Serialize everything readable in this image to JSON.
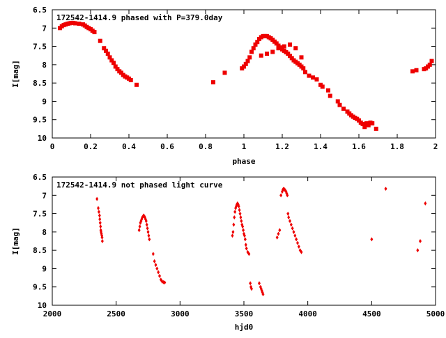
{
  "colors": {
    "points": "#ee0000",
    "axes": "#000000",
    "background": "#ffffff"
  },
  "chart_data": [
    {
      "type": "scatter",
      "title": "172542-1414.9 phased with P=379.0day",
      "xlabel": "phase",
      "ylabel": "I[mag]",
      "xlim": [
        0,
        2
      ],
      "ylim": [
        10,
        6.5
      ],
      "y_inverted": true,
      "grid": false,
      "x_ticks": [
        0,
        0.2,
        0.4,
        0.6,
        0.8,
        1,
        1.2,
        1.4,
        1.6,
        1.8,
        2
      ],
      "x_tick_labels": [
        "0",
        "0.2",
        "0.4",
        "0.6",
        "0.8",
        "1",
        "1.2",
        "1.4",
        "1.6",
        "1.8",
        "2"
      ],
      "y_ticks": [
        6.5,
        7,
        7.5,
        8,
        8.5,
        9,
        9.5,
        10
      ],
      "y_tick_labels": [
        "6.5",
        "7",
        "7.5",
        "8",
        "8.5",
        "9",
        "9.5",
        "10"
      ],
      "marker": "square",
      "series": [
        {
          "x": [
            0.04,
            0.05,
            0.06,
            0.07,
            0.08,
            0.09,
            0.1,
            0.11,
            0.12,
            0.14,
            0.16,
            0.17,
            0.18,
            0.19,
            0.2,
            0.21,
            0.22,
            0.25,
            0.27,
            0.28,
            0.29,
            0.3,
            0.31,
            0.32,
            0.33,
            0.34,
            0.35,
            0.36,
            0.37,
            0.38,
            0.39,
            0.4,
            0.41,
            0.44,
            0.84,
            0.9,
            0.99,
            1.0,
            1.01,
            1.02,
            1.03,
            1.04,
            1.05,
            1.06,
            1.07,
            1.08,
            1.09,
            1.1,
            1.11,
            1.12,
            1.13,
            1.14,
            1.15,
            1.16,
            1.17,
            1.18,
            1.19,
            1.2,
            1.21,
            1.22,
            1.23,
            1.24,
            1.25,
            1.26,
            1.27,
            1.28,
            1.29,
            1.3,
            1.31,
            1.32,
            1.34,
            1.36,
            1.38,
            1.4,
            1.41,
            1.44,
            1.45,
            1.49,
            1.5,
            1.52,
            1.54,
            1.55,
            1.56,
            1.57,
            1.58,
            1.59,
            1.6,
            1.61,
            1.62,
            1.63,
            1.64,
            1.65,
            1.66,
            1.67,
            1.69,
            1.88,
            1.9,
            1.94,
            1.95,
            1.96,
            1.97,
            1.98,
            1.09,
            1.12,
            1.15,
            1.18,
            1.21,
            1.24,
            1.27,
            1.3
          ],
          "y": [
            7.0,
            6.95,
            6.92,
            6.9,
            6.88,
            6.87,
            6.86,
            6.86,
            6.87,
            6.88,
            6.9,
            6.93,
            6.97,
            7.0,
            7.03,
            7.07,
            7.11,
            7.35,
            7.55,
            7.62,
            7.7,
            7.8,
            7.88,
            7.95,
            8.05,
            8.12,
            8.18,
            8.22,
            8.28,
            8.32,
            8.35,
            8.38,
            8.42,
            8.55,
            8.48,
            8.22,
            8.1,
            8.05,
            7.98,
            7.9,
            7.8,
            7.65,
            7.55,
            7.45,
            7.38,
            7.3,
            7.25,
            7.22,
            7.22,
            7.22,
            7.25,
            7.28,
            7.32,
            7.37,
            7.42,
            7.48,
            7.53,
            7.58,
            7.62,
            7.66,
            7.7,
            7.76,
            7.82,
            7.88,
            7.92,
            7.96,
            8.0,
            8.05,
            8.1,
            8.2,
            8.3,
            8.35,
            8.4,
            8.55,
            8.6,
            8.7,
            8.85,
            9.0,
            9.1,
            9.2,
            9.28,
            9.33,
            9.38,
            9.42,
            9.45,
            9.48,
            9.52,
            9.58,
            9.62,
            9.7,
            9.6,
            9.65,
            9.58,
            9.6,
            9.75,
            8.18,
            8.15,
            8.12,
            8.1,
            8.05,
            8.0,
            7.9,
            7.75,
            7.7,
            7.65,
            7.55,
            7.5,
            7.45,
            7.55,
            7.8
          ]
        }
      ]
    },
    {
      "type": "scatter",
      "title": "172542-1414.9 not phased light curve",
      "xlabel": "hjd0",
      "ylabel": "I[mag]",
      "xlim": [
        2000,
        5000
      ],
      "ylim": [
        10,
        6.5
      ],
      "y_inverted": true,
      "grid": false,
      "x_ticks": [
        2000,
        2500,
        3000,
        3500,
        4000,
        4500,
        5000
      ],
      "x_tick_labels": [
        "2000",
        "2500",
        "3000",
        "3500",
        "4000",
        "4500",
        "5000"
      ],
      "y_ticks": [
        6.5,
        7,
        7.5,
        8,
        8.5,
        9,
        9.5,
        10
      ],
      "y_tick_labels": [
        "6.5",
        "7",
        "7.5",
        "8",
        "8.5",
        "9",
        "9.5",
        "10"
      ],
      "marker": "diamond",
      "series": [
        {
          "x": [
            2350,
            2360,
            2365,
            2370,
            2372,
            2375,
            2378,
            2380,
            2382,
            2385,
            2388,
            2390,
            2392,
            2680,
            2685,
            2690,
            2695,
            2700,
            2705,
            2710,
            2715,
            2720,
            2725,
            2730,
            2735,
            2740,
            2745,
            2750,
            2755,
            2760,
            2790,
            2800,
            2810,
            2820,
            2830,
            2840,
            2850,
            2860,
            2870,
            2880,
            3410,
            3415,
            3420,
            3425,
            3430,
            3435,
            3440,
            3445,
            3450,
            3455,
            3460,
            3465,
            3470,
            3475,
            3480,
            3485,
            3490,
            3495,
            3500,
            3505,
            3510,
            3515,
            3520,
            3530,
            3540,
            3550,
            3555,
            3560,
            3620,
            3630,
            3635,
            3640,
            3645,
            3650,
            3760,
            3770,
            3780,
            3790,
            3800,
            3805,
            3810,
            3815,
            3820,
            3825,
            3830,
            3835,
            3840,
            3845,
            3850,
            3860,
            3870,
            3880,
            3890,
            3900,
            3910,
            3920,
            3930,
            3940,
            3950,
            4500,
            4610,
            4860,
            4880,
            4920
          ],
          "y": [
            7.1,
            7.35,
            7.45,
            7.55,
            7.65,
            7.75,
            7.85,
            7.95,
            8.0,
            8.05,
            8.1,
            8.15,
            8.25,
            7.95,
            7.85,
            7.75,
            7.7,
            7.65,
            7.6,
            7.58,
            7.55,
            7.57,
            7.6,
            7.65,
            7.7,
            7.8,
            7.9,
            8.0,
            8.1,
            8.2,
            8.6,
            8.8,
            8.9,
            9.0,
            9.1,
            9.2,
            9.3,
            9.35,
            9.37,
            9.38,
            8.1,
            8.0,
            7.8,
            7.6,
            7.45,
            7.35,
            7.3,
            7.25,
            7.22,
            7.25,
            7.3,
            7.4,
            7.5,
            7.6,
            7.7,
            7.8,
            7.85,
            7.95,
            8.05,
            8.1,
            8.2,
            8.35,
            8.45,
            8.55,
            8.6,
            9.4,
            9.5,
            9.55,
            9.4,
            9.5,
            9.55,
            9.6,
            9.65,
            9.7,
            8.15,
            8.05,
            7.95,
            7.0,
            6.9,
            6.85,
            6.82,
            6.83,
            6.85,
            6.87,
            6.9,
            6.95,
            7.0,
            7.5,
            7.6,
            7.7,
            7.8,
            7.9,
            8.0,
            8.1,
            8.2,
            8.3,
            8.4,
            8.5,
            8.55,
            8.2,
            6.82,
            8.5,
            8.25,
            7.22
          ]
        }
      ]
    }
  ]
}
